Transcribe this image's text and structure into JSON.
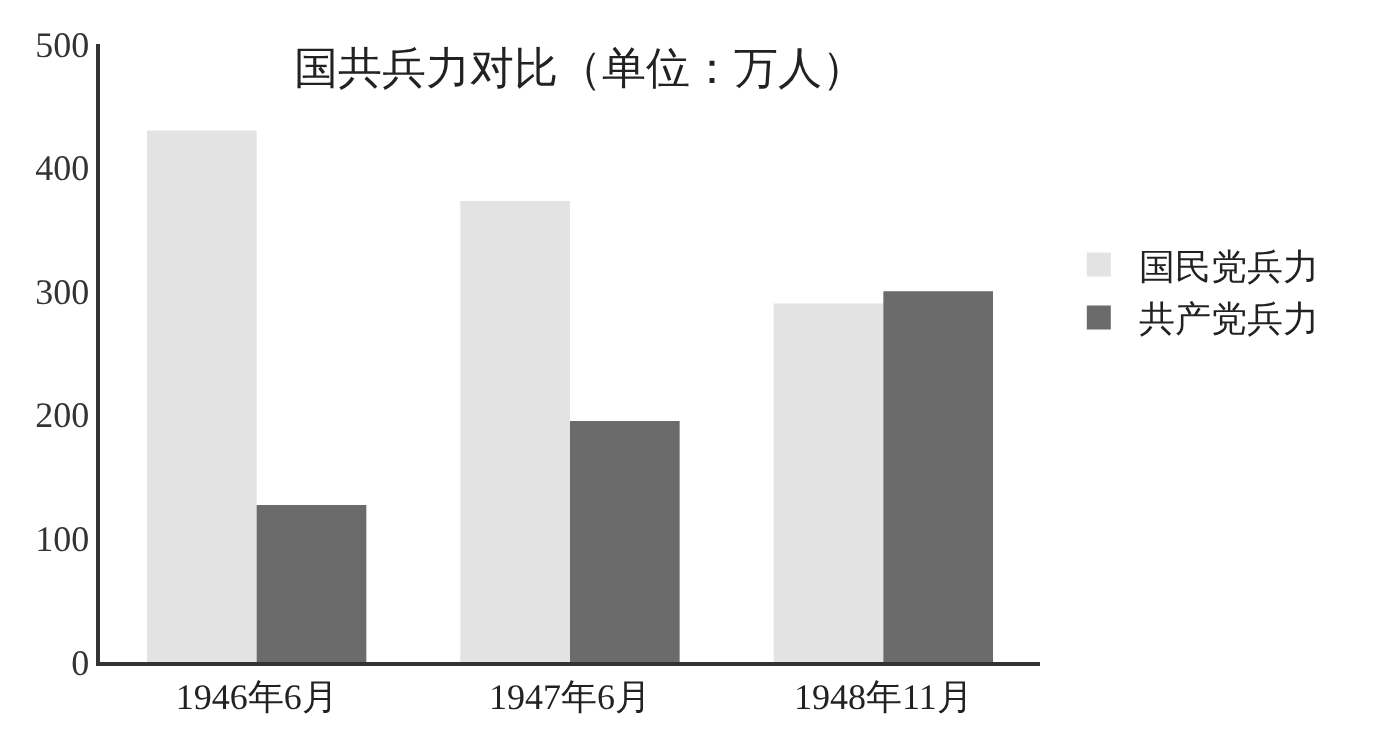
{
  "chart_data": {
    "type": "bar",
    "title": "国共兵力对比（单位：万人）",
    "categories": [
      "1946年6月",
      "1947年6月",
      "1948年11月"
    ],
    "series": [
      {
        "name": "国民党兵力",
        "color": "#e3e3e3",
        "values": [
          430,
          373,
          290
        ]
      },
      {
        "name": "共产党兵力",
        "color": "#6b6b6b",
        "values": [
          127,
          195,
          300
        ]
      }
    ],
    "ylim": [
      0,
      500
    ],
    "yticks": [
      0,
      100,
      200,
      300,
      400,
      500
    ],
    "grid": false,
    "legend": "right"
  }
}
